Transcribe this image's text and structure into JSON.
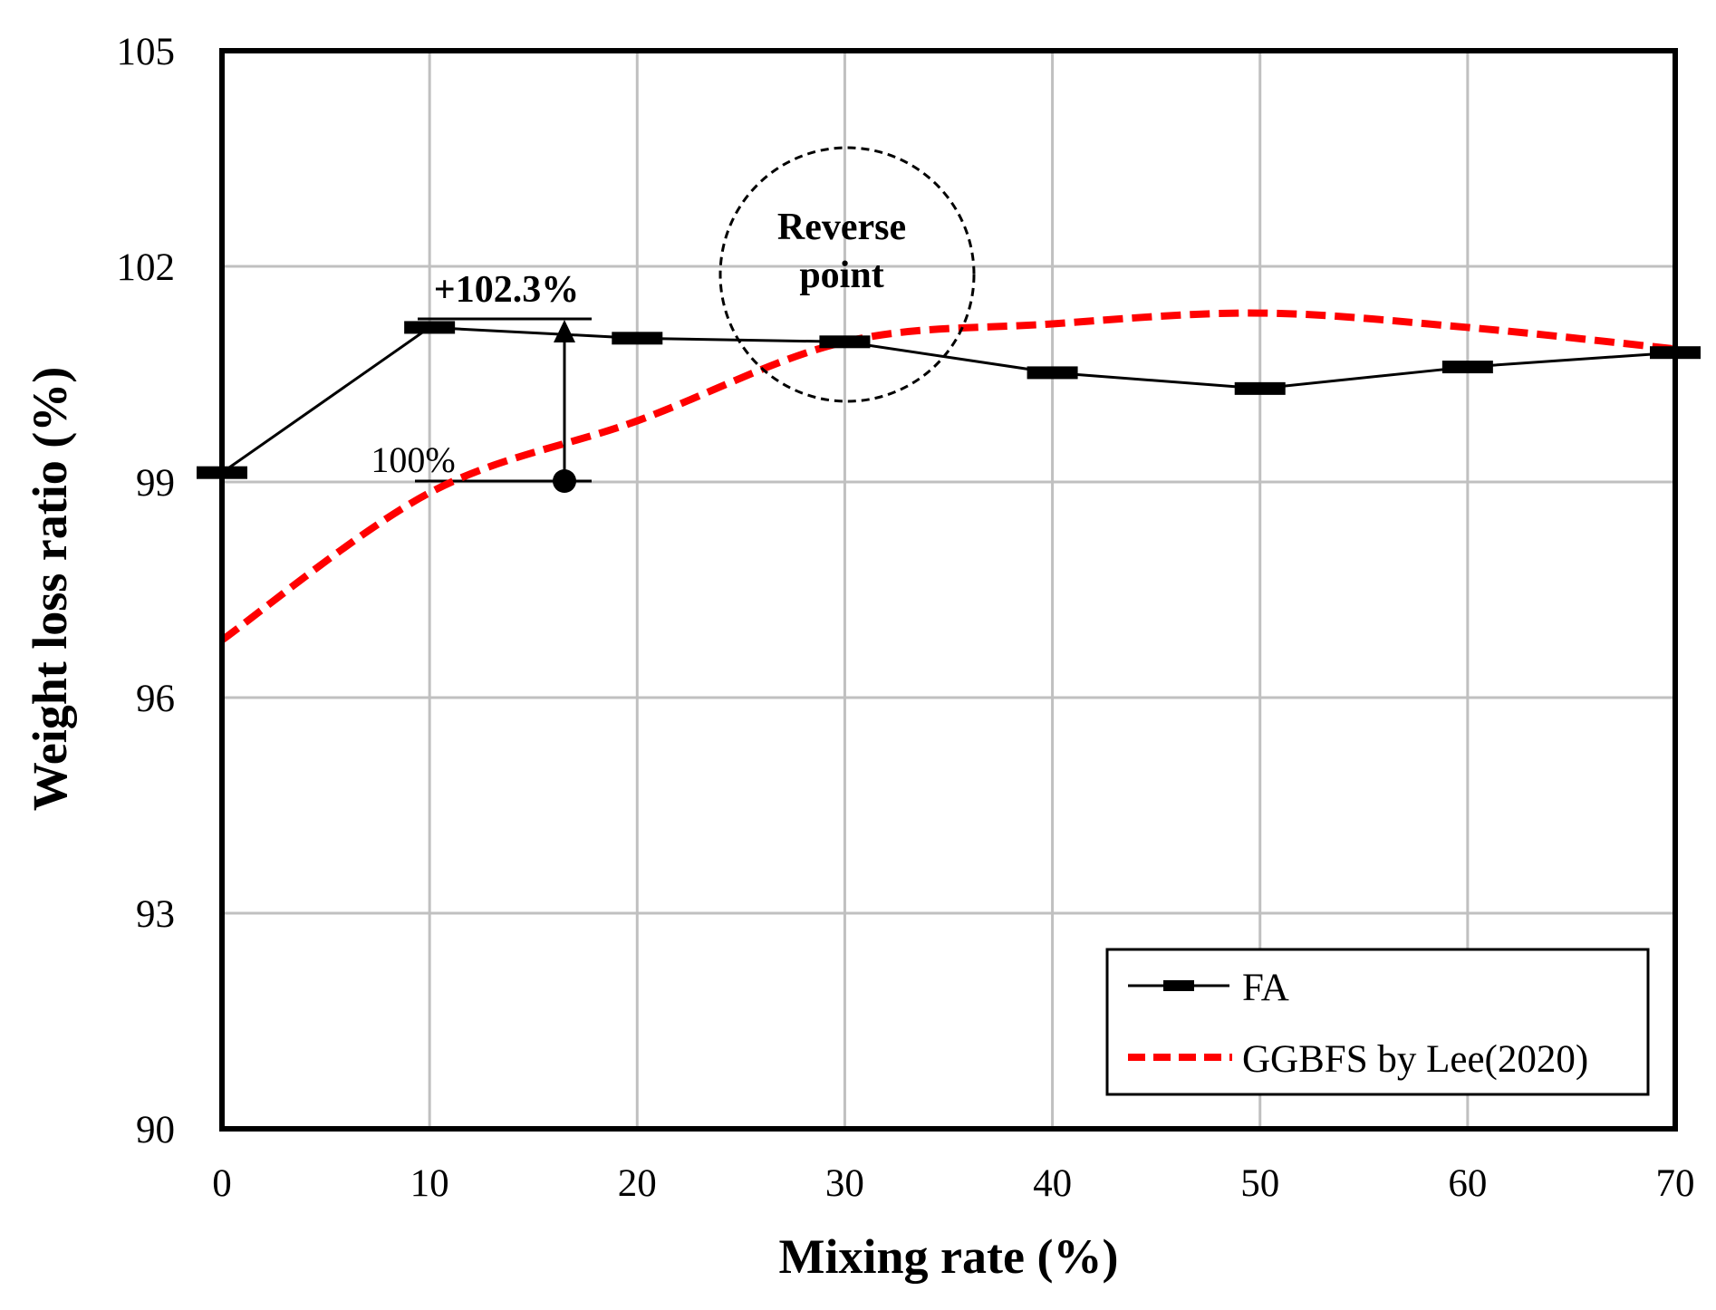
{
  "chart_data": {
    "type": "line",
    "xlabel": "Mixing rate (%)",
    "ylabel": "Weight loss ratio (%)",
    "xlim": [
      0,
      70
    ],
    "ylim": [
      90,
      105
    ],
    "xticks": [
      0,
      10,
      20,
      30,
      40,
      50,
      60,
      70
    ],
    "yticks": [
      90,
      93,
      96,
      99,
      102,
      105
    ],
    "grid": true,
    "legend_position": "bottom-right",
    "series": [
      {
        "name": "FA",
        "style": "solid-marker",
        "color": "#000000",
        "x": [
          0,
          10,
          20,
          30,
          40,
          50,
          60,
          70
        ],
        "y": [
          99.13,
          101.15,
          101.0,
          100.95,
          100.52,
          100.3,
          100.6,
          100.8
        ]
      },
      {
        "name": "GGBFS by Lee(2020)",
        "style": "dashed",
        "color": "#ff0000",
        "x": [
          0,
          10,
          20,
          30,
          40,
          50,
          60,
          70
        ],
        "y": [
          96.8,
          98.85,
          99.85,
          100.95,
          101.2,
          101.35,
          101.15,
          100.85
        ]
      }
    ],
    "annotations": {
      "increase_label": "+102.3%",
      "base_label": "100%",
      "circle_label_line1": "Reverse",
      "circle_label_line2": "point"
    }
  }
}
